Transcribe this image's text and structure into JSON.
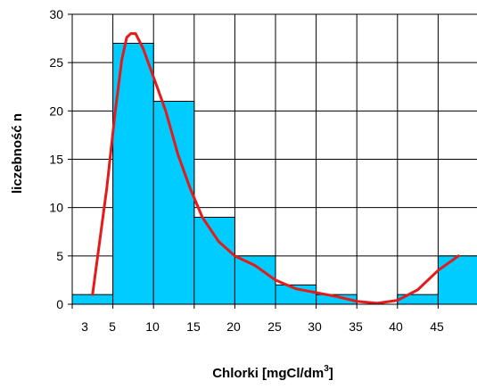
{
  "chart_data": {
    "type": "bar",
    "xlabel": "Chlorki [mgCl/dm",
    "xlabel_sup": "3",
    "xlabel_end": "]",
    "ylabel": "liczebność n",
    "ylim": [
      0,
      30
    ],
    "yticks": [
      0,
      5,
      10,
      15,
      20,
      25,
      30
    ],
    "grid": true,
    "bins": [
      {
        "label": "3",
        "x0": 1,
        "x1": 5,
        "value": 1
      },
      {
        "label": "5",
        "x0": 5,
        "x1": 10,
        "value": 27
      },
      {
        "label": "10",
        "x0": 10,
        "x1": 15,
        "value": 21
      },
      {
        "label": "15",
        "x0": 15,
        "x1": 20,
        "value": 9
      },
      {
        "label": "20",
        "x0": 20,
        "x1": 25,
        "value": 5
      },
      {
        "label": "25",
        "x0": 25,
        "x1": 30,
        "value": 2
      },
      {
        "label": "30",
        "x0": 30,
        "x1": 35,
        "value": 1
      },
      {
        "label": "35",
        "x0": 35,
        "x1": 40,
        "value": 0
      },
      {
        "label": "40",
        "x0": 40,
        "x1": 45,
        "value": 1
      },
      {
        "label": "45",
        "x0": 45,
        "x1": 50,
        "value": 5
      }
    ],
    "curve": {
      "x": [
        3,
        4.4,
        5.3,
        6.1,
        6.7,
        7.2,
        7.8,
        8.7,
        10,
        11.5,
        13,
        14.5,
        16,
        18,
        20,
        22.5,
        25,
        27.5,
        30,
        32.5,
        35,
        37.5,
        40,
        42.5,
        45,
        47.5
      ],
      "y": [
        1,
        12,
        20,
        25.3,
        27.6,
        28,
        28,
        26.5,
        23.5,
        20,
        15.5,
        12,
        9,
        6.5,
        5,
        4,
        2.5,
        1.6,
        1.2,
        0.8,
        0.3,
        0.1,
        0.4,
        1.5,
        3.5,
        5
      ]
    },
    "colors": {
      "bar": "#00ccff",
      "curve": "#e31b1b",
      "grid": "#000000"
    }
  }
}
